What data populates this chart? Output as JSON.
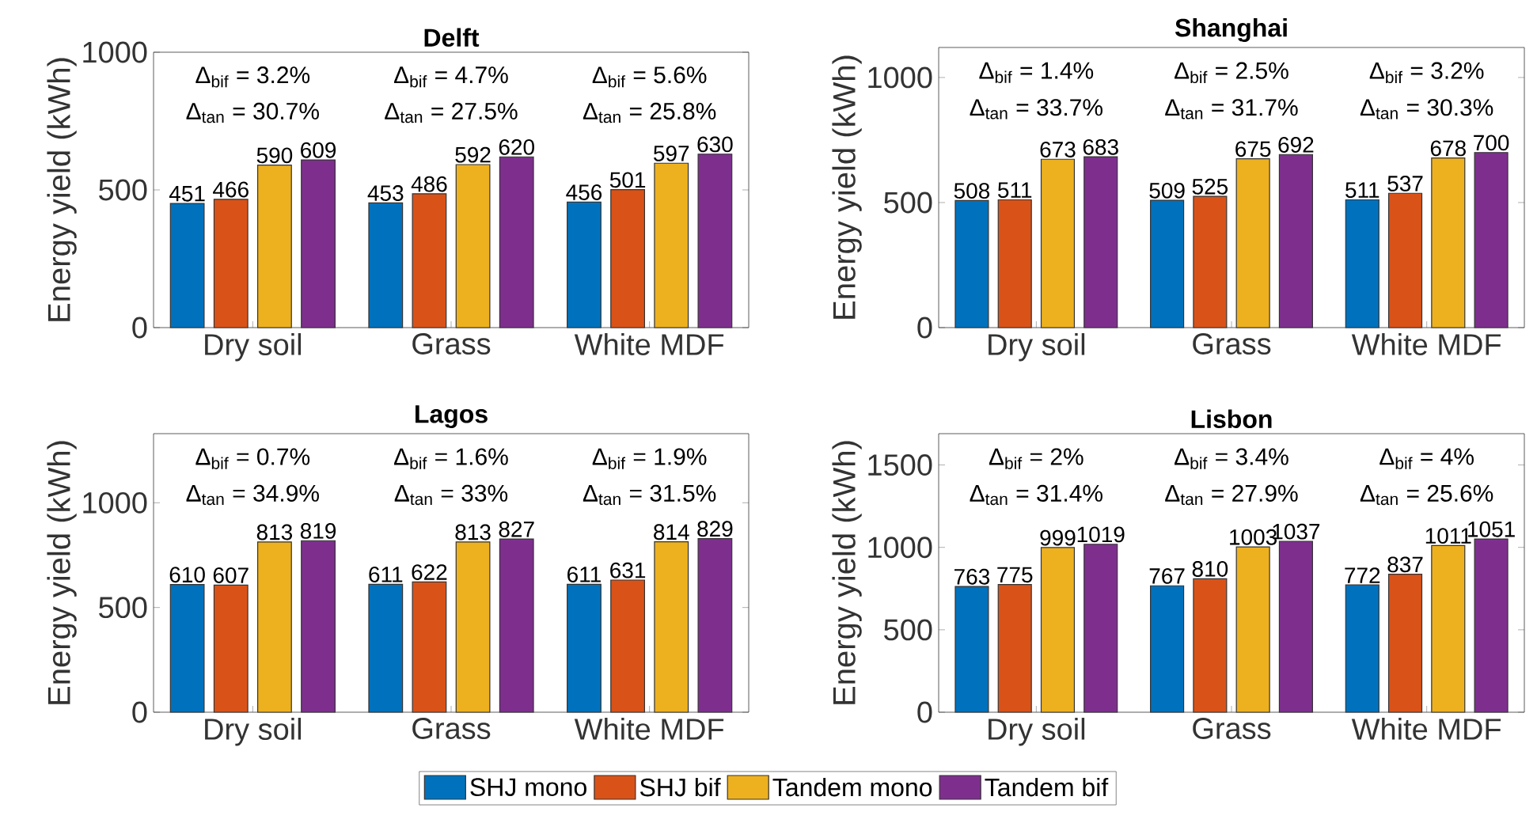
{
  "chart_data": [
    {
      "type": "bar",
      "title": "Delft",
      "ylabel": "Energy yield (kWh)",
      "categories": [
        "Dry soil",
        "Grass",
        "White MDF"
      ],
      "ylim": [
        0,
        1000
      ],
      "yticks": [
        0,
        500,
        1000
      ],
      "data_labels": true,
      "annotations": [
        "Δ$_{bif}$ = 3.2%",
        "Δ$_{tan}$ = 30.7%",
        "Δ$_{bif}$ = 4.7%",
        "Δ$_{tan}$ = 27.5%",
        "Δ$_{bif}$ = 5.6%",
        "Δ$_{tan}$ = 25.8%"
      ],
      "series": [
        {
          "color": "#0072bd",
          "values": [
            451,
            453,
            456
          ]
        },
        {
          "color": "#d95319",
          "values": [
            466,
            486,
            501
          ]
        },
        {
          "color": "#edb120",
          "values": [
            590,
            592,
            597
          ]
        },
        {
          "color": "#7e2f8e",
          "values": [
            609,
            620,
            630
          ]
        }
      ]
    },
    {
      "type": "bar",
      "title": "Shanghai",
      "ylabel": "Energy yield (kWh)",
      "categories": [
        "Dry soil",
        "Grass",
        "White MDF"
      ],
      "ylim": [
        0,
        1120
      ],
      "yticks": [
        0,
        500,
        1000
      ],
      "data_labels": true,
      "annotations": [
        "Δ$_{bif}$ = 1.4%",
        "Δ$_{tan}$ = 33.7%",
        "Δ$_{bif}$ = 2.5%",
        "Δ$_{tan}$ = 31.7%",
        "Δ$_{bif}$ = 3.2%",
        "Δ$_{tan}$ = 30.3%"
      ],
      "series": [
        {
          "color": "#0072bd",
          "values": [
            508,
            509,
            511
          ]
        },
        {
          "color": "#d95319",
          "values": [
            511,
            525,
            537
          ]
        },
        {
          "color": "#edb120",
          "values": [
            673,
            675,
            678
          ]
        },
        {
          "color": "#7e2f8e",
          "values": [
            683,
            692,
            700
          ]
        }
      ]
    },
    {
      "type": "bar",
      "title": "Lagos",
      "ylabel": "Energy yield (kWh)",
      "categories": [
        "Dry soil",
        "Grass",
        "White MDF"
      ],
      "ylim": [
        0,
        1330
      ],
      "yticks": [
        0,
        500,
        1000
      ],
      "data_labels": true,
      "annotations": [
        "Δ$_{bif}$ = 0.7%",
        "Δ$_{tan}$ = 34.9%",
        "Δ$_{bif}$ = 1.6%",
        "Δ$_{tan}$ = 33%",
        "Δ$_{bif}$ = 1.9%",
        "Δ$_{tan}$ = 31.5%"
      ],
      "series": [
        {
          "color": "#0072bd",
          "values": [
            610,
            611,
            611
          ]
        },
        {
          "color": "#d95319",
          "values": [
            607,
            622,
            631
          ]
        },
        {
          "color": "#edb120",
          "values": [
            813,
            813,
            814
          ]
        },
        {
          "color": "#7e2f8e",
          "values": [
            819,
            827,
            829
          ]
        }
      ]
    },
    {
      "type": "bar",
      "title": "Lisbon",
      "ylabel": "Energy yield (kWh)",
      "categories": [
        "Dry soil",
        "Grass",
        "White MDF"
      ],
      "ylim": [
        0,
        1690
      ],
      "yticks": [
        0,
        500,
        1000,
        1500
      ],
      "data_labels": true,
      "legend": "bottom",
      "annotations": [
        "Δ$_{bif}$ = 2%",
        "Δ$_{tan}$ = 31.4%",
        "Δ$_{bif}$ = 3.4%",
        "Δ$_{tan}$ = 27.9%",
        "Δ$_{bif}$ = 4%",
        "Δ$_{tan}$ = 25.6%"
      ],
      "series": [
        {
          "name": "SHJ mono",
          "color": "#0072bd",
          "values": [
            763,
            767,
            772
          ]
        },
        {
          "name": "SHJ bif",
          "color": "#d95319",
          "values": [
            775,
            810,
            837
          ]
        },
        {
          "name": "Tandem mono",
          "color": "#edb120",
          "values": [
            999,
            1003,
            1011
          ]
        },
        {
          "name": "Tandem bif",
          "color": "#7e2f8e",
          "values": [
            1019,
            1037,
            1051
          ]
        }
      ]
    }
  ]
}
